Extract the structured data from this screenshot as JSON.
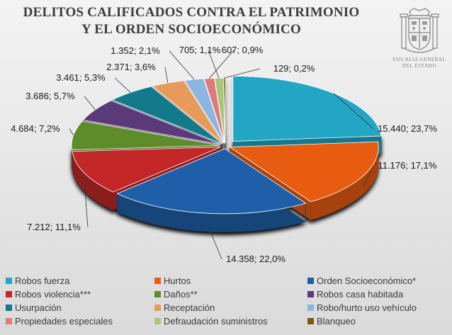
{
  "header": {
    "title_line1": "DELITOS CALIFICADOS CONTRA EL PATRIMONIO",
    "title_line2": "Y EL ORDEN SOCIOECONÓMICO",
    "logo_line1": "FISCALIA GENERAL",
    "logo_line2": "DEL ESTADO"
  },
  "chart_data": {
    "type": "pie",
    "title": "DELITOS CALIFICADOS CONTRA EL PATRIMONIO Y EL ORDEN SOCIOECONÓMICO",
    "legend_position": "bottom",
    "slices": [
      {
        "name": "Robos fuerza",
        "value": 15440,
        "label": "15.440; 23,7%",
        "color": "#23a6c4"
      },
      {
        "name": "Hurtos",
        "value": 11176,
        "label": "11.176; 17,1%",
        "color": "#e85c12"
      },
      {
        "name": "Orden Socioeconómico*",
        "value": 14358,
        "label": "14.358; 22,0%",
        "color": "#1f5ea8"
      },
      {
        "name": "Robos violencia***",
        "value": 7212,
        "label": "7.212; 11,1%",
        "color": "#c42727"
      },
      {
        "name": "Daños**",
        "value": 4684,
        "label": "4.684; 7,2%",
        "color": "#5e8c2a"
      },
      {
        "name": "Robos casa habitada",
        "value": 3686,
        "label": "3.686; 5,7%",
        "color": "#5a3a78"
      },
      {
        "name": "Usurpación",
        "value": 3461,
        "label": "3.461; 5,3%",
        "color": "#137a8c"
      },
      {
        "name": "Receptación",
        "value": 2371,
        "label": "2.371; 3,6%",
        "color": "#e89a5a"
      },
      {
        "name": "Robo/hurto uso vehículo",
        "value": 1352,
        "label": "1.352; 2,1%",
        "color": "#8ab6e0"
      },
      {
        "name": "Propiedades especiales",
        "value": 705,
        "label": "705; 1,1%",
        "color": "#e07a7a"
      },
      {
        "name": "Defraudación suministros",
        "value": 607,
        "label": "607; 0,9%",
        "color": "#a8c878"
      },
      {
        "name": "Blanqueo",
        "value": 129,
        "label": "129; 0,2%",
        "color": "#7a5a12"
      }
    ]
  }
}
